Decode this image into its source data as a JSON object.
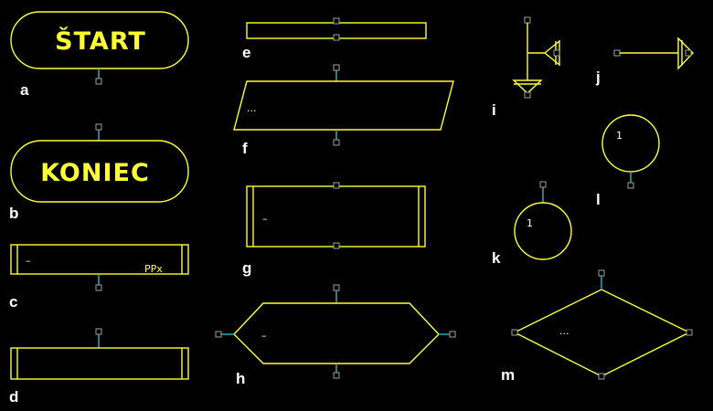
{
  "shapes": {
    "a": {
      "letter": "a",
      "text": "ŠTART"
    },
    "b": {
      "letter": "b",
      "text": "KONIEC"
    },
    "c": {
      "letter": "c",
      "text": "–",
      "code": "PPx"
    },
    "d": {
      "letter": "d"
    },
    "e": {
      "letter": "e"
    },
    "f": {
      "letter": "f",
      "text": "..."
    },
    "g": {
      "letter": "g",
      "text": "–"
    },
    "h": {
      "letter": "h",
      "text": "–"
    },
    "i": {
      "letter": "i"
    },
    "j": {
      "letter": "j"
    },
    "k": {
      "letter": "k",
      "text": "1"
    },
    "l": {
      "letter": "l",
      "text": "1"
    },
    "m": {
      "letter": "m",
      "text": "..."
    }
  },
  "colors": {
    "background": "#000000",
    "outline": "#ffff33",
    "connector": "#2ab8c8",
    "handle": "#a0a0a0",
    "label": "#ffffff"
  }
}
